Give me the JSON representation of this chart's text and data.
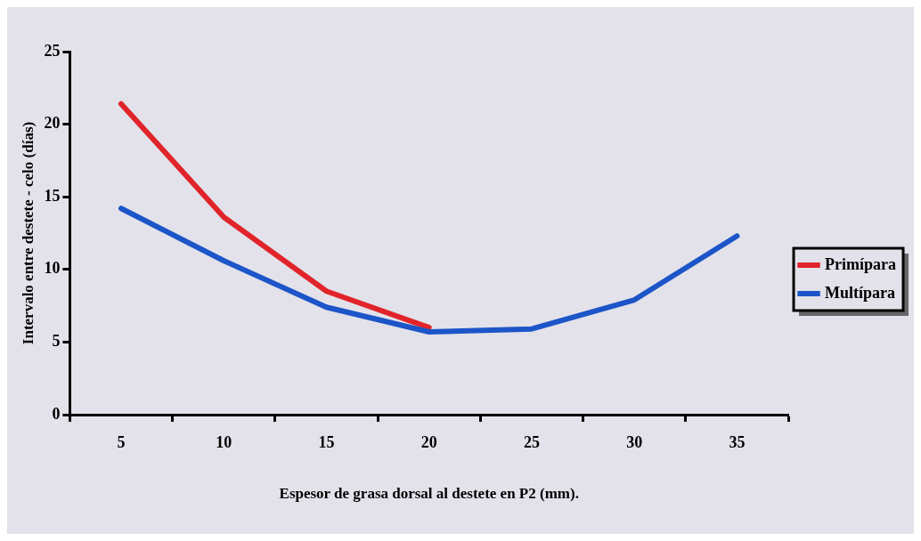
{
  "chart_data": {
    "type": "line",
    "xlabel": "Espesor de grasa dorsal al destete en P2 (mm).",
    "ylabel": "Intervalo entre destete - celo (días)",
    "categories": [
      "5",
      "10",
      "15",
      "20",
      "25",
      "30",
      "35"
    ],
    "series": [
      {
        "name": "Primípara",
        "color": "#e0242a",
        "values": [
          21.4,
          13.6,
          8.5,
          6.0,
          null,
          null,
          null
        ]
      },
      {
        "name": "Multípara",
        "color": "#1c55c8",
        "values": [
          14.2,
          10.6,
          7.4,
          5.7,
          5.9,
          7.9,
          12.3
        ]
      }
    ],
    "ylim": [
      0,
      25
    ],
    "yticks": [
      0,
      5,
      10,
      15,
      20,
      25
    ],
    "grid": false,
    "legend": "right",
    "marker": "none",
    "line_style": "solid"
  }
}
